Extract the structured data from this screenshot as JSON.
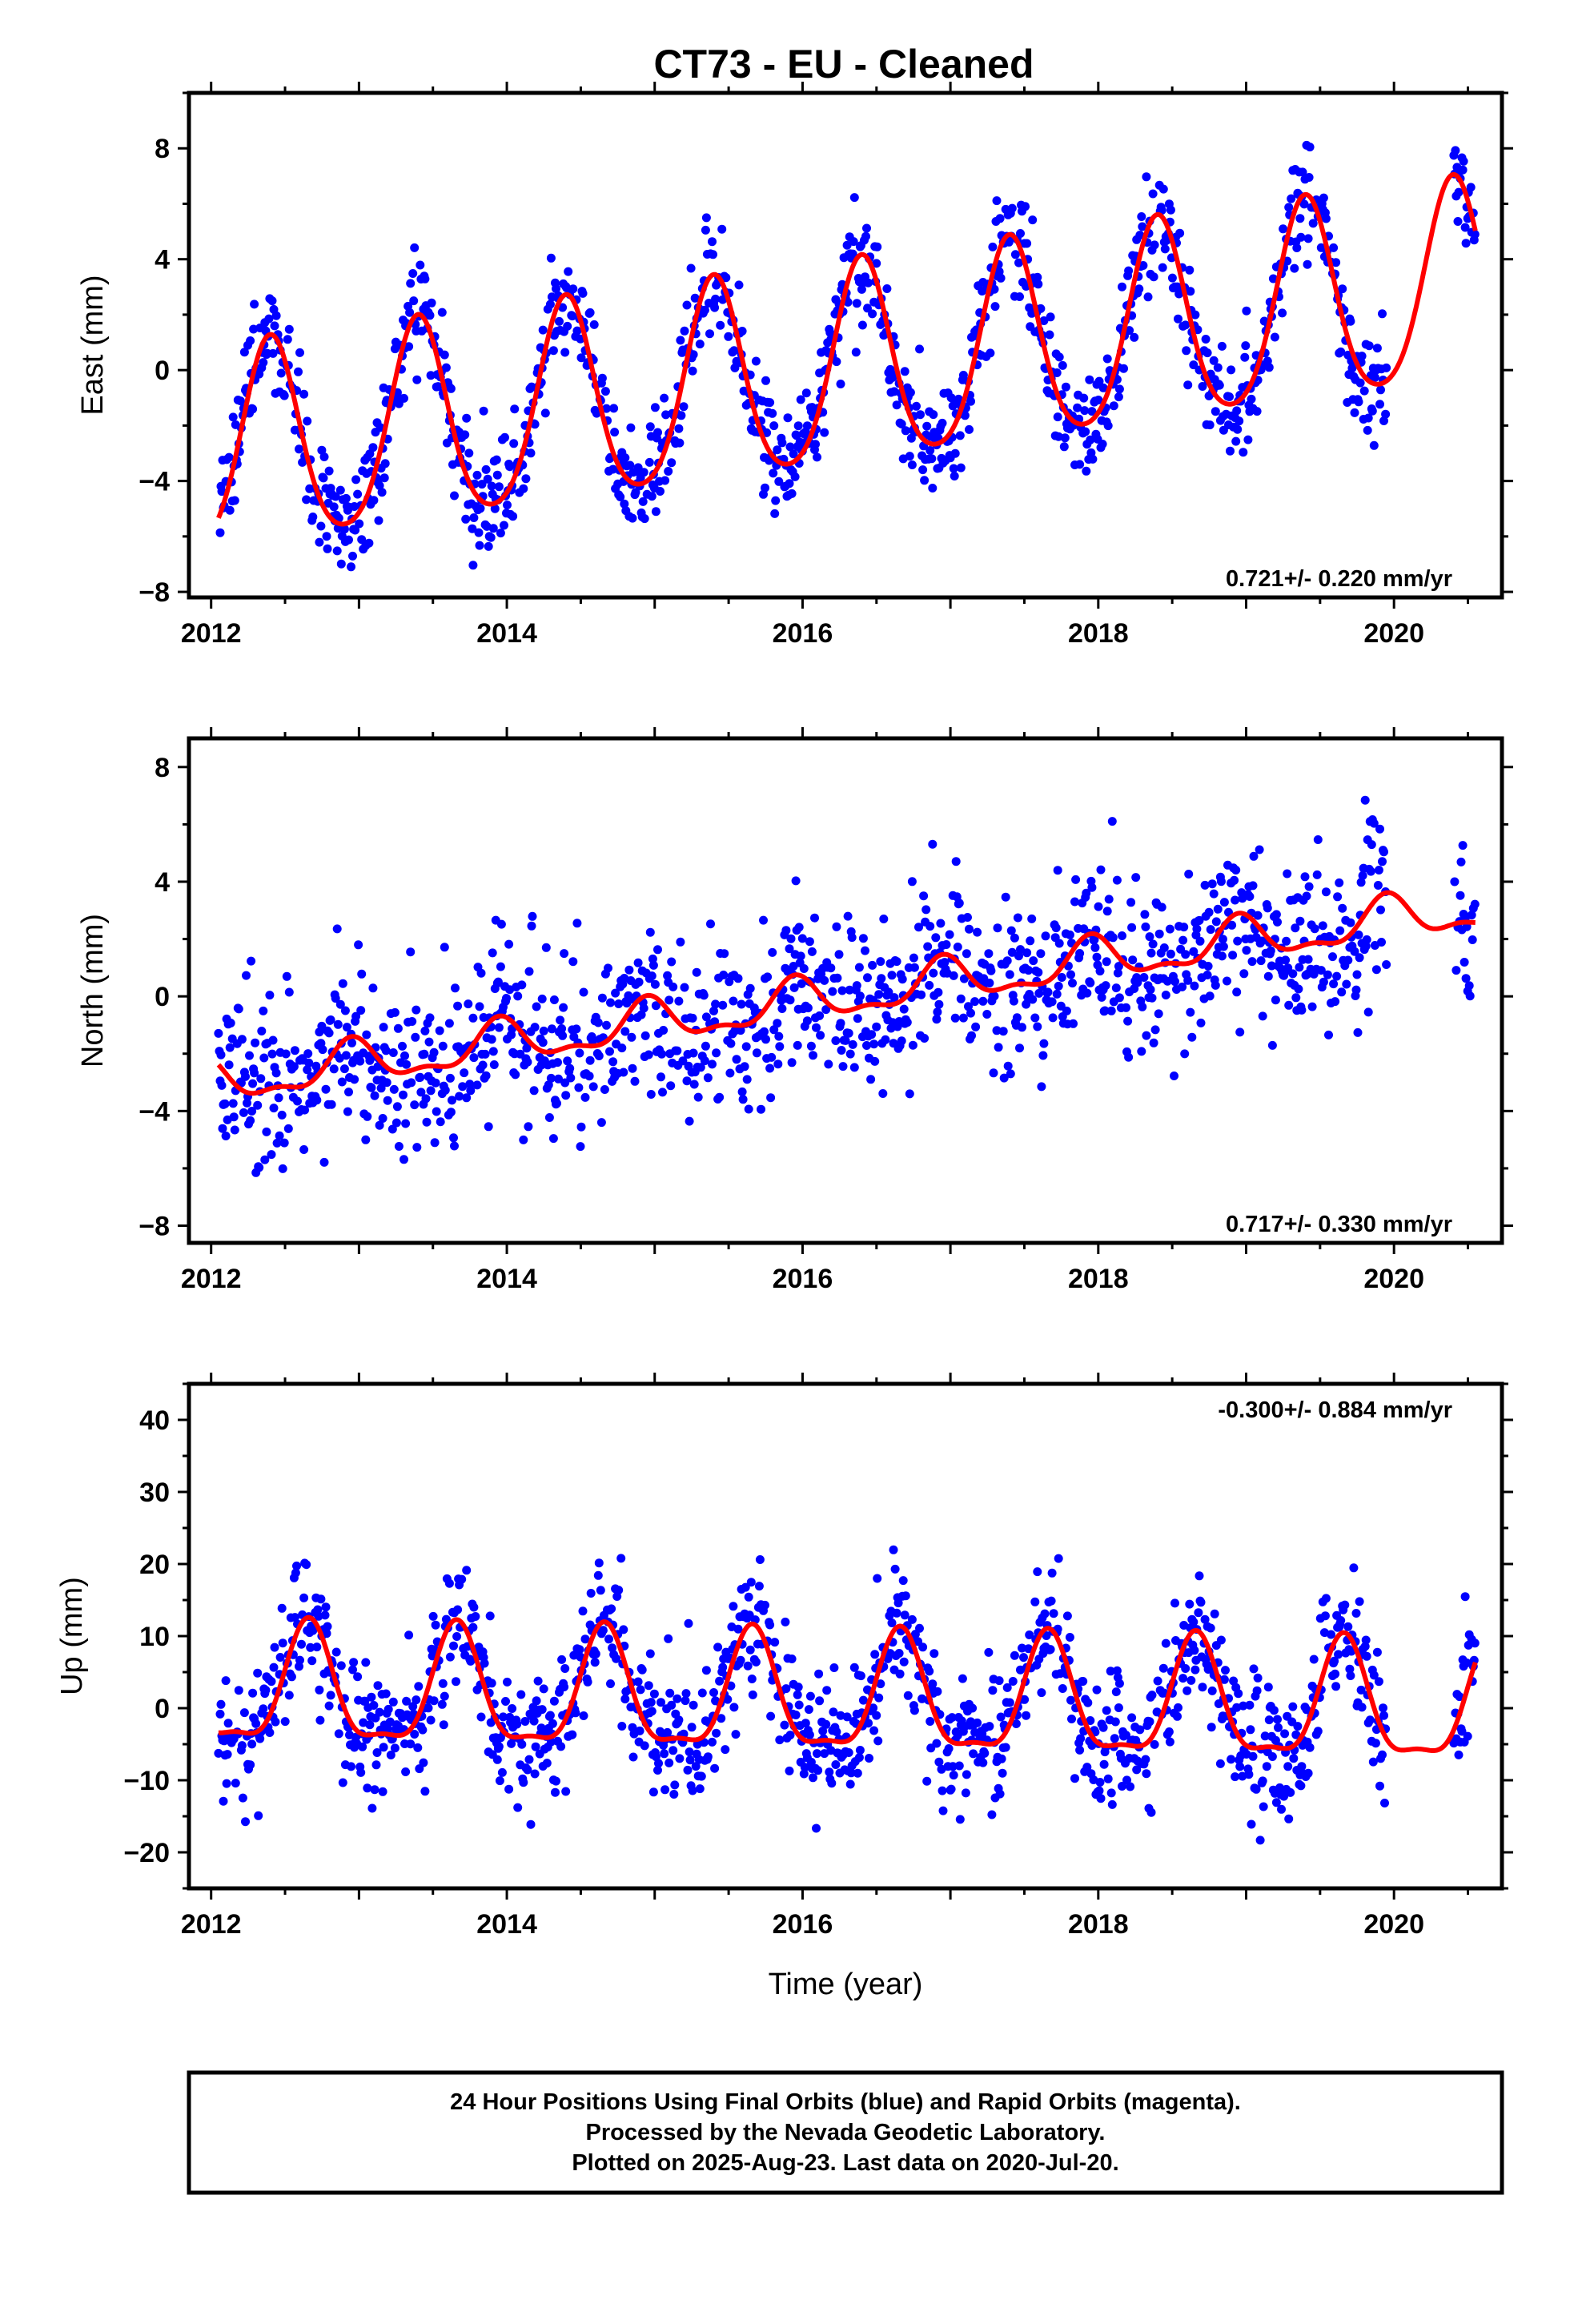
{
  "title": "CT73  - EU - Cleaned",
  "footer": {
    "line1": "24 Hour Positions Using Final Orbits (blue) and Rapid Orbits (magenta).",
    "line2": "Processed by the Nevada Geodetic Laboratory.",
    "line3": "Plotted on 2025-Aug-23. Last data on 2020-Jul-20."
  },
  "colors": {
    "data": "#0000ff",
    "model": "#ff0000",
    "frame": "#000000"
  },
  "chart_data": [
    {
      "type": "scatter",
      "title": "",
      "xlabel": "",
      "ylabel": "East (mm)",
      "xlim": [
        2011.85,
        2020.73
      ],
      "ylim": [
        -8.2,
        10.0
      ],
      "xticks": [
        2012,
        2014,
        2016,
        2018,
        2020
      ],
      "xtick_labels": [
        "2012",
        "2014",
        "2016",
        "2018",
        "2020"
      ],
      "yticks": [
        -8,
        -4,
        0,
        4,
        8
      ],
      "ytick_labels": [
        "−8",
        "−4",
        "0",
        "4",
        "8"
      ],
      "rate_annotation": "0.721+/- 0.220 mm/yr",
      "data_range": [
        2012.05,
        2020.55
      ],
      "model_range": [
        2012.05,
        2020.55
      ],
      "model": {
        "offset": 0.0,
        "rate": 0.721,
        "ref_epoch": 2016.3,
        "annual_amp": 3.6,
        "annual_peak": 2012.4,
        "semiannual_amp": 0.5,
        "semiannual_peak": 2012.4
      },
      "scatter_noise_sd": 1.0,
      "series": [
        {
          "role": "observations",
          "marker": "dot",
          "color": "#0000ff"
        },
        {
          "role": "fit",
          "marker": "line",
          "color": "#ff0000"
        }
      ]
    },
    {
      "type": "scatter",
      "title": "",
      "xlabel": "",
      "ylabel": "North (mm)",
      "xlim": [
        2011.85,
        2020.73
      ],
      "ylim": [
        -8.6,
        9.0
      ],
      "xticks": [
        2012,
        2014,
        2016,
        2018,
        2020
      ],
      "xtick_labels": [
        "2012",
        "2014",
        "2016",
        "2018",
        "2020"
      ],
      "yticks": [
        -8,
        -4,
        0,
        4,
        8
      ],
      "ytick_labels": [
        "−8",
        "−4",
        "0",
        "4",
        "8"
      ],
      "rate_annotation": "0.717+/- 0.330 mm/yr",
      "data_range": [
        2012.05,
        2020.55
      ],
      "model_range": [
        2012.05,
        2020.55
      ],
      "model": {
        "offset": 0.0,
        "rate": 0.717,
        "ref_epoch": 2016.3,
        "annual_amp": 0.7,
        "annual_peak": 2012.95,
        "semiannual_amp": 0.3,
        "semiannual_peak": 2012.45
      },
      "scatter_noise_sd": 1.5,
      "series": [
        {
          "role": "observations",
          "marker": "dot",
          "color": "#0000ff"
        },
        {
          "role": "fit",
          "marker": "line",
          "color": "#ff0000"
        }
      ]
    },
    {
      "type": "scatter",
      "title": "",
      "xlabel": "Time (year)",
      "ylabel": "Up (mm)",
      "xlim": [
        2011.85,
        2020.73
      ],
      "ylim": [
        -25,
        45
      ],
      "xticks": [
        2012,
        2014,
        2016,
        2018,
        2020
      ],
      "xtick_labels": [
        "2012",
        "2014",
        "2016",
        "2018",
        "2020"
      ],
      "yticks": [
        -20,
        -10,
        0,
        10,
        20,
        30,
        40
      ],
      "ytick_labels": [
        "−20",
        "−10",
        "0",
        "10",
        "20",
        "30",
        "40"
      ],
      "rate_annotation": "-0.300+/- 0.884 mm/yr",
      "data_range": [
        2012.05,
        2020.55
      ],
      "model_range": [
        2012.05,
        2020.55
      ],
      "model": {
        "offset": 1.0,
        "rate": -0.3,
        "ref_epoch": 2016.3,
        "annual_amp": 8.0,
        "annual_peak": 2012.66,
        "semiannual_amp": 2.5,
        "semiannual_peak": 2012.66
      },
      "scatter_noise_sd": 4.5,
      "series": [
        {
          "role": "observations",
          "marker": "dot",
          "color": "#0000ff"
        },
        {
          "role": "fit",
          "marker": "line",
          "color": "#ff0000"
        }
      ]
    }
  ]
}
